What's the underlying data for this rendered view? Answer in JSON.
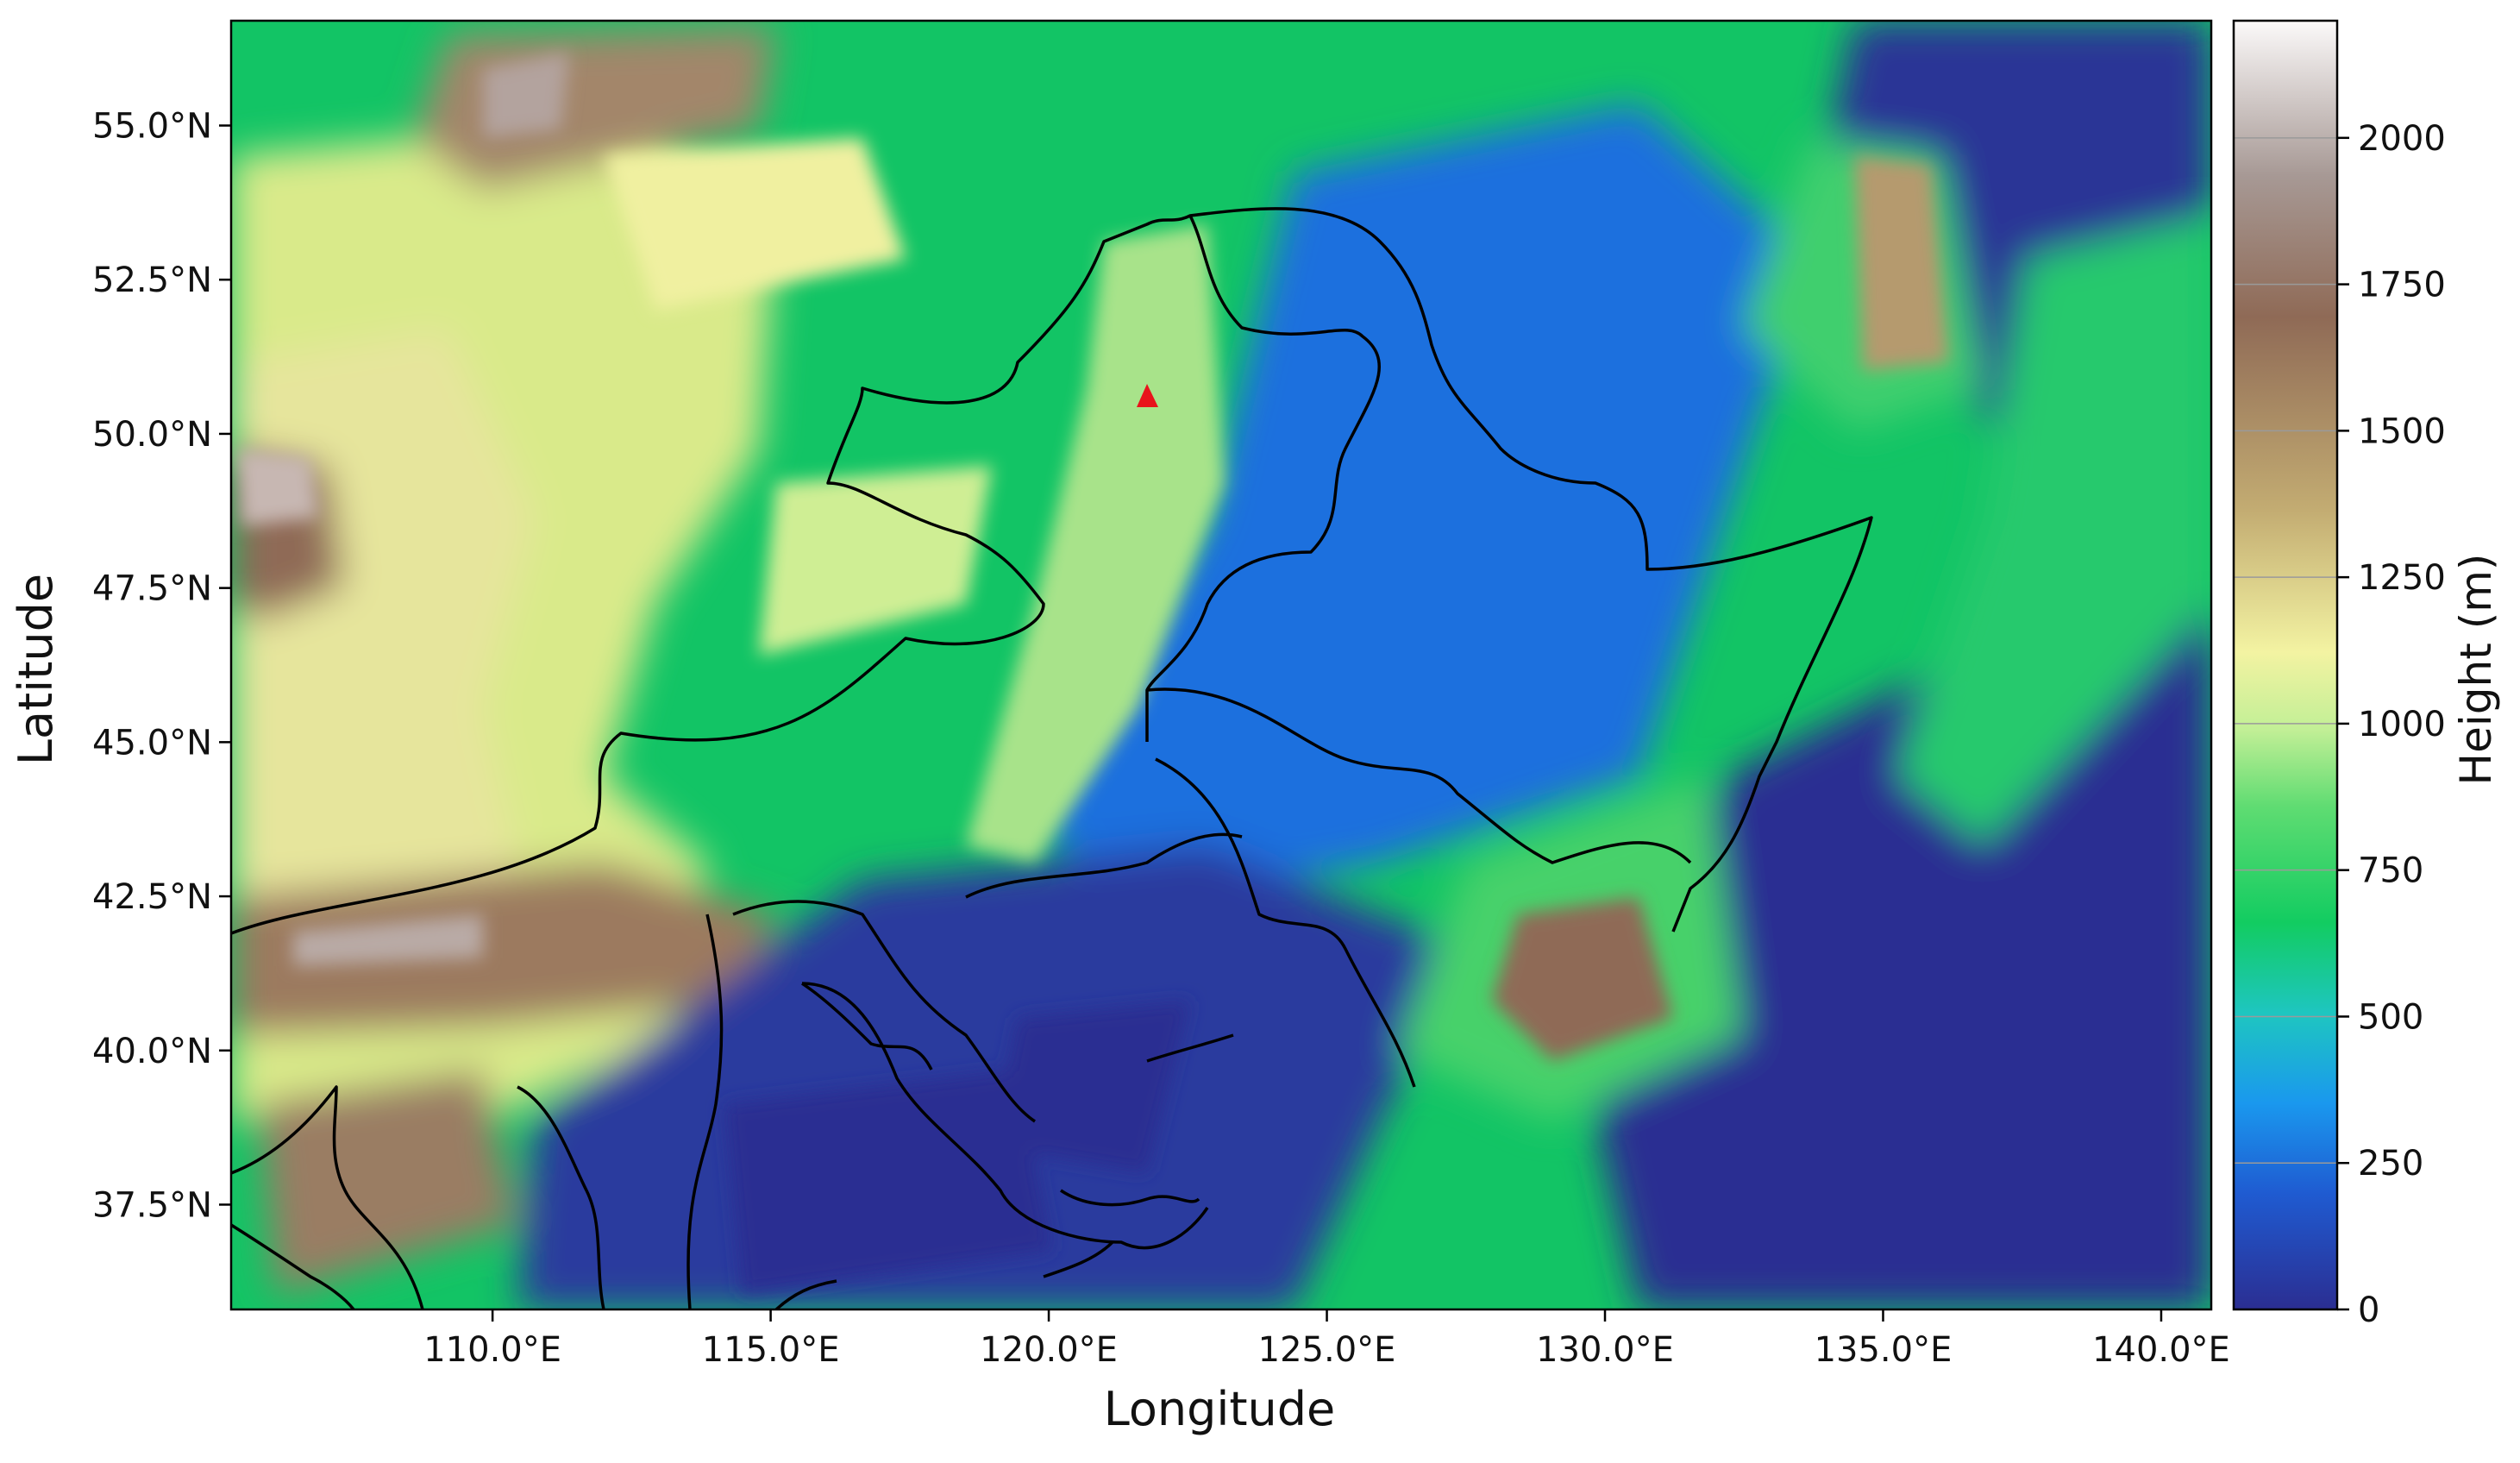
{
  "figure": {
    "xlabel": "Longitude",
    "ylabel": "Latitude",
    "colorbar_label": "Height (m)"
  },
  "map": {
    "lon_range": [
      105.3,
      140.9
    ],
    "lat_range": [
      35.8,
      56.7
    ],
    "marker": {
      "shape": "triangle",
      "color": "#e8141b",
      "lon": 121.7,
      "lat": 50.5
    }
  },
  "axes": {
    "x_ticks": [
      {
        "value": 110,
        "label": "110.0°E"
      },
      {
        "value": 115,
        "label": "115.0°E"
      },
      {
        "value": 120,
        "label": "120.0°E"
      },
      {
        "value": 125,
        "label": "125.0°E"
      },
      {
        "value": 130,
        "label": "130.0°E"
      },
      {
        "value": 135,
        "label": "135.0°E"
      },
      {
        "value": 140,
        "label": "140.0°E"
      }
    ],
    "y_ticks": [
      {
        "value": 37.5,
        "label": "37.5°N"
      },
      {
        "value": 40.0,
        "label": "40.0°N"
      },
      {
        "value": 42.5,
        "label": "42.5°N"
      },
      {
        "value": 45.0,
        "label": "45.0°N"
      },
      {
        "value": 47.5,
        "label": "47.5°N"
      },
      {
        "value": 50.0,
        "label": "50.0°N"
      },
      {
        "value": 52.5,
        "label": "52.5°N"
      },
      {
        "value": 55.0,
        "label": "55.0°N"
      }
    ]
  },
  "colorbar": {
    "range": [
      0,
      2200
    ],
    "ticks": [
      {
        "value": 0,
        "label": "0"
      },
      {
        "value": 250,
        "label": "250"
      },
      {
        "value": 500,
        "label": "500"
      },
      {
        "value": 750,
        "label": "750"
      },
      {
        "value": 1000,
        "label": "1000"
      },
      {
        "value": 1250,
        "label": "1250"
      },
      {
        "value": 1500,
        "label": "1500"
      },
      {
        "value": 1750,
        "label": "1750"
      },
      {
        "value": 2000,
        "label": "2000"
      }
    ],
    "colors": [
      "#2b2e92",
      "#1f5bd1",
      "#1a98ee",
      "#1ec6c0",
      "#12cc61",
      "#5fdc72",
      "#c2ef96",
      "#f3f3a2",
      "#c3ac72",
      "#8f6a56",
      "#a79995",
      "#fbf9f9"
    ]
  }
}
